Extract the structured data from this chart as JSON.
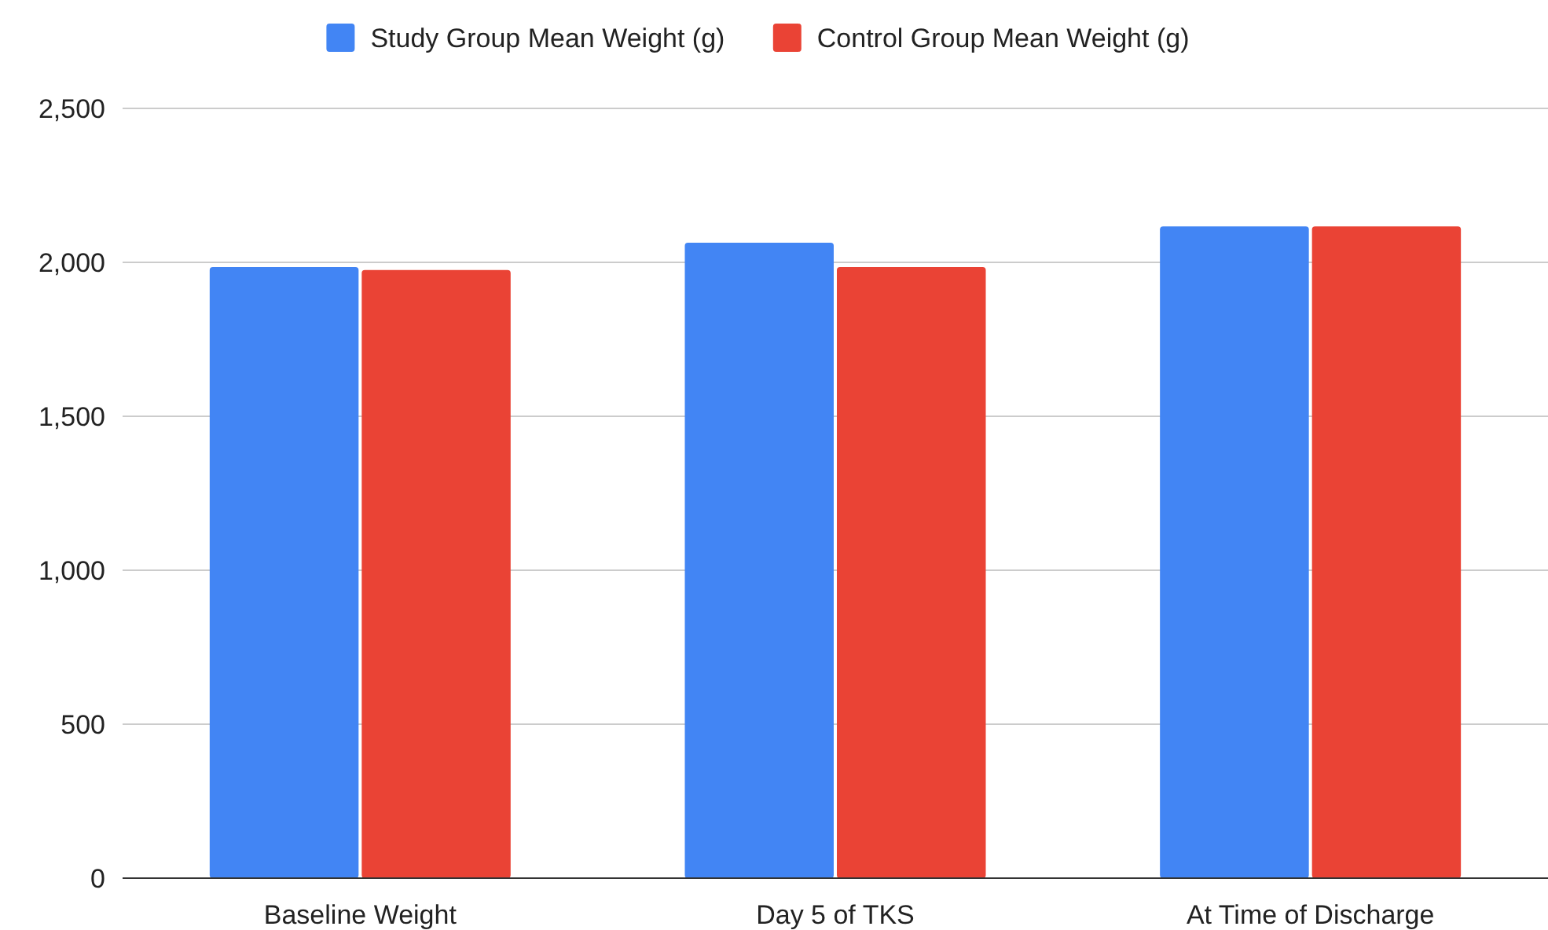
{
  "chart_data": {
    "type": "bar",
    "categories": [
      "Baseline Weight",
      "Day 5 of TKS",
      "At Time of Discharge"
    ],
    "series": [
      {
        "name": "Study Group Mean Weight (g)",
        "color": "#4285f4",
        "values": [
          1985,
          2064,
          2117
        ]
      },
      {
        "name": "Control Group Mean Weight (g)",
        "color": "#ea4335",
        "values": [
          1975,
          1985,
          2117
        ]
      }
    ],
    "ylim": [
      0,
      2500
    ],
    "yticks": [
      {
        "value": 0,
        "label": "0"
      },
      {
        "value": 500,
        "label": "500"
      },
      {
        "value": 1000,
        "label": "1,000"
      },
      {
        "value": 1500,
        "label": "1,500"
      },
      {
        "value": 2000,
        "label": "2,000"
      },
      {
        "value": 2500,
        "label": "2,500"
      }
    ],
    "grid": "y",
    "legend": "top"
  }
}
